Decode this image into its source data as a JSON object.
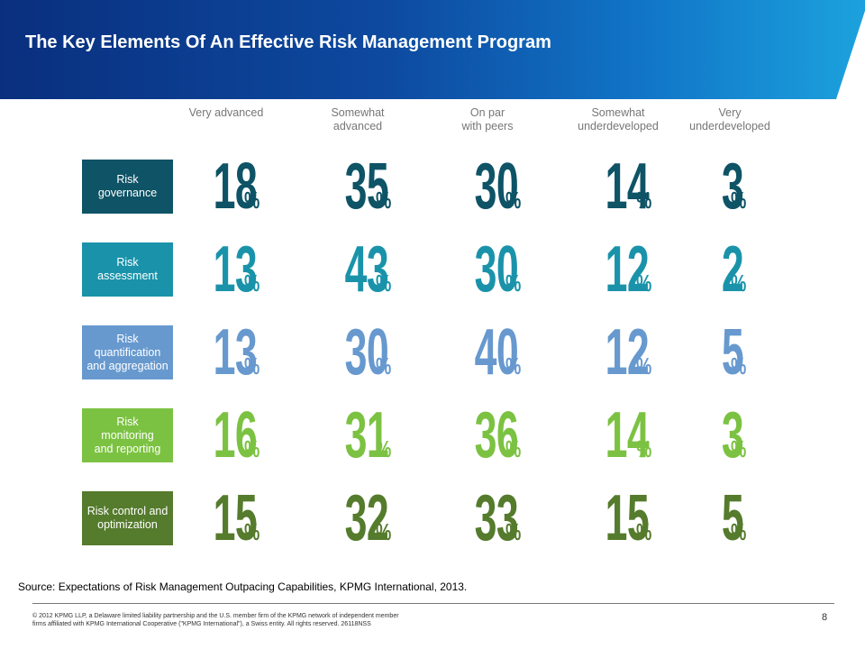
{
  "title": "The Key Elements Of An Effective Risk Management Program",
  "source": "Source: Expectations of Risk Management Outpacing Capabilities, KPMG International, 2013.",
  "copyright_lines": [
    "© 2012 KPMG LLP, a Delaware limited liability partnership and the U.S. member firm of the KPMG network of independent member",
    "firms affiliated with KPMG International Cooperative (\"KPMG International\"), a Swiss entity. All rights reserved. 26118NSS"
  ],
  "page_number": "8",
  "chart_data": {
    "type": "table",
    "unit": "%",
    "columns": [
      [
        "Very advanced"
      ],
      [
        "Somewhat",
        "advanced"
      ],
      [
        "On par",
        "with peers"
      ],
      [
        "Somewhat",
        "underdeveloped"
      ],
      [
        "Very",
        "underdeveloped"
      ]
    ],
    "rows": [
      {
        "label": [
          "Risk",
          "governance"
        ],
        "values": [
          18,
          35,
          30,
          14,
          3
        ],
        "color": "#0e5366",
        "box_color": "#0e5366"
      },
      {
        "label": [
          "Risk",
          "assessment"
        ],
        "values": [
          13,
          43,
          30,
          12,
          2
        ],
        "color": "#1a93aa",
        "box_color": "#1a93aa"
      },
      {
        "label": [
          "Risk",
          "quantification",
          "and aggregation"
        ],
        "values": [
          13,
          30,
          40,
          12,
          5
        ],
        "color": "#6799cf",
        "box_color": "#6799cf"
      },
      {
        "label": [
          "Risk",
          "monitoring",
          "and reporting"
        ],
        "values": [
          16,
          31,
          36,
          14,
          3
        ],
        "color": "#7cc242",
        "box_color": "#7cc242"
      },
      {
        "label": [
          "Risk control and",
          "optimization"
        ],
        "values": [
          15,
          32,
          33,
          15,
          5
        ],
        "color": "#557b2c",
        "box_color": "#557b2c"
      }
    ]
  }
}
